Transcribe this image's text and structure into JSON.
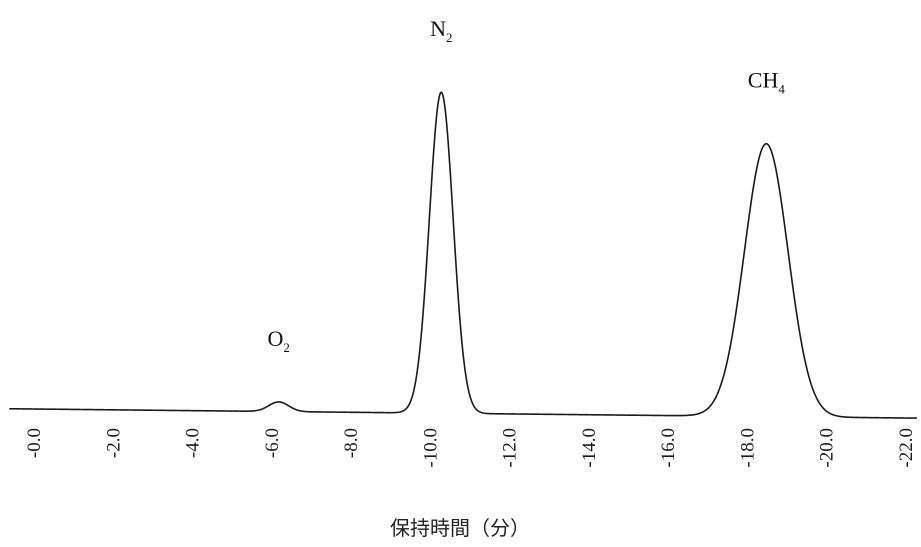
{
  "chart_data": {
    "type": "line",
    "title": "",
    "xlabel": "保持時間（分）",
    "ylabel": "",
    "xlim": [
      0,
      22
    ],
    "ylim": [
      0,
      1
    ],
    "grid": false,
    "tick_labels": [
      "-0.0",
      "-2.0",
      "-4.0",
      "-6.0",
      "-8.0",
      "-10.0",
      "-12.0",
      "-14.0",
      "-16.0",
      "-18.0",
      "-20.0",
      "-22.0"
    ],
    "tick_values": [
      0,
      2,
      4,
      6,
      8,
      10,
      12,
      14,
      16,
      18,
      20,
      22
    ],
    "peaks": [
      {
        "label": "O",
        "sub": "2",
        "x": 6.2,
        "height": 0.03,
        "width": 0.25
      },
      {
        "label": "N",
        "sub": "2",
        "x": 10.3,
        "height": 1.0,
        "width": 0.3
      },
      {
        "label": "CH",
        "sub": "4",
        "x": 18.5,
        "height": 0.85,
        "width": 0.55
      }
    ]
  }
}
